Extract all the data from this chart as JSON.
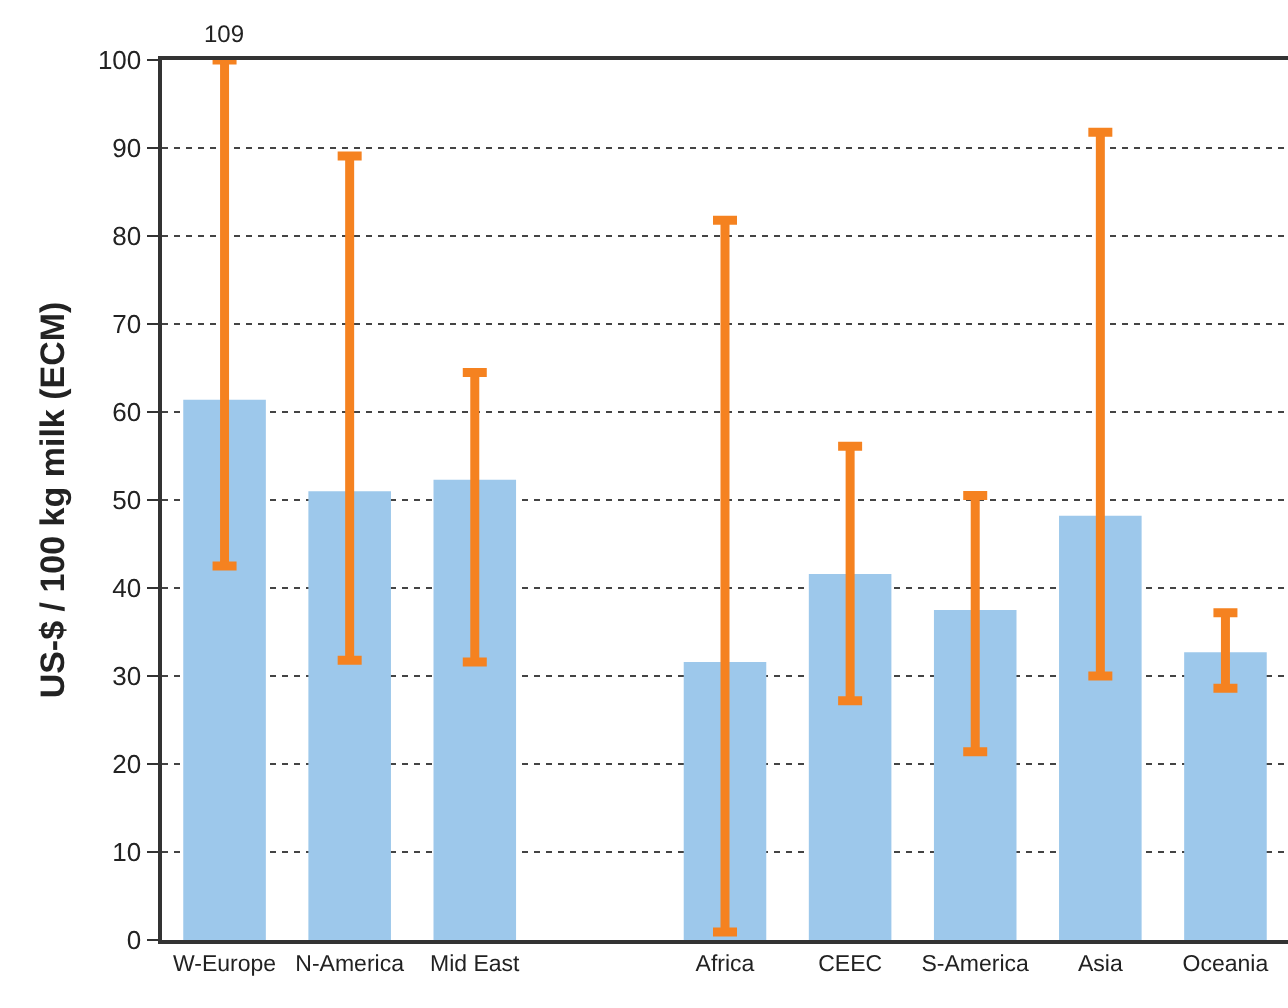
{
  "chart_data": {
    "type": "bar",
    "ylabel": "US-$ / 100 kg milk (ECM)",
    "categories": [
      "W-Europe",
      "N-America",
      "Mid East",
      null,
      "Africa",
      "CEEC",
      "S-America",
      "Asia",
      "Oceania"
    ],
    "values": [
      61.4,
      51,
      52.3,
      null,
      31.6,
      41.6,
      37.5,
      48.2,
      32.7
    ],
    "errors": [
      [
        42.5,
        100
      ],
      [
        31.8,
        89.1
      ],
      [
        31.6,
        64.5
      ],
      null,
      [
        0.9,
        81.8
      ],
      [
        27.2,
        56.1
      ],
      [
        21.4,
        50.5
      ],
      [
        30,
        91.8
      ],
      [
        28.6,
        37.2
      ]
    ],
    "color": "#9dc8eb",
    "annotations": [
      {
        "text": "109",
        "x": "W-Europe",
        "y": 100
      }
    ],
    "ylim": [
      0,
      100
    ],
    "yticks": [
      0,
      10,
      20,
      30,
      40,
      50,
      60,
      70,
      80,
      90,
      100
    ],
    "grid": "y",
    "legend": false
  }
}
